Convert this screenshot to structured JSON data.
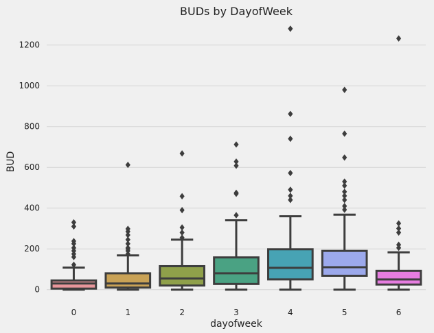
{
  "chart_data": {
    "type": "box",
    "title": "BUDs by DayofWeek",
    "xlabel": "dayofweek",
    "ylabel": "BUD",
    "categories": [
      "0",
      "1",
      "2",
      "3",
      "4",
      "5",
      "6"
    ],
    "yticks": [
      0,
      200,
      400,
      600,
      800,
      1000,
      1200
    ],
    "ylim": [
      -75,
      1320
    ],
    "grid": true,
    "boxes": [
      {
        "category": "0",
        "color": "#e8969b",
        "whisker_low": 0,
        "q1": 5,
        "median": 30,
        "q3": 45,
        "whisker_high": 108,
        "outliers": [
          122,
          160,
          175,
          190,
          205,
          225,
          238,
          310,
          330
        ]
      },
      {
        "category": "1",
        "color": "#c9a256",
        "whisker_low": 0,
        "q1": 10,
        "median": 30,
        "q3": 80,
        "whisker_high": 168,
        "outliers": [
          175,
          190,
          200,
          205,
          225,
          245,
          268,
          285,
          298,
          612
        ]
      },
      {
        "category": "2",
        "color": "#8fa04a",
        "whisker_low": 0,
        "q1": 20,
        "median": 55,
        "q3": 115,
        "whisker_high": 245,
        "outliers": [
          255,
          280,
          305,
          390,
          458,
          668
        ]
      },
      {
        "category": "3",
        "color": "#4aa283",
        "whisker_low": 0,
        "q1": 28,
        "median": 80,
        "q3": 158,
        "whisker_high": 340,
        "outliers": [
          365,
          470,
          475,
          608,
          628,
          712
        ]
      },
      {
        "category": "4",
        "color": "#47a3b4",
        "whisker_low": 0,
        "q1": 50,
        "median": 107,
        "q3": 198,
        "whisker_high": 360,
        "outliers": [
          440,
          460,
          490,
          572,
          740,
          862,
          1280
        ]
      },
      {
        "category": "5",
        "color": "#9ca9ec",
        "whisker_low": 0,
        "q1": 68,
        "median": 110,
        "q3": 190,
        "whisker_high": 368,
        "outliers": [
          392,
          410,
          440,
          460,
          480,
          510,
          530,
          648,
          765,
          980
        ]
      },
      {
        "category": "6",
        "color": "#e67de0",
        "whisker_low": 0,
        "q1": 25,
        "median": 50,
        "q3": 92,
        "whisker_high": 183,
        "outliers": [
          205,
          220,
          280,
          300,
          325,
          1232
        ]
      }
    ]
  }
}
